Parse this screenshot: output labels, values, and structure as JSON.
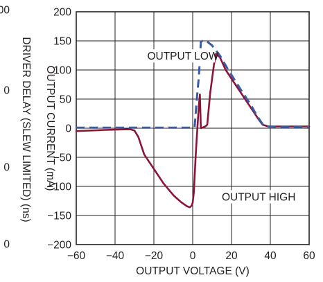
{
  "chart_data": {
    "type": "line",
    "title": "",
    "xlabel": "OUTPUT VOLTAGE (V)",
    "ylabel": "OUTPUT CURRENT (mA)",
    "side_label": "DRIVER DELAY (SLEW LIMITED) (ns)",
    "side_ticks": [
      "00",
      "0",
      "0",
      "0"
    ],
    "xlim": [
      -60,
      60
    ],
    "ylim": [
      -200,
      200
    ],
    "x_ticks": [
      "−60",
      "−40",
      "−20",
      "0",
      "20",
      "40",
      "60"
    ],
    "y_ticks": [
      "200",
      "150",
      "100",
      "50",
      "0",
      "−50",
      "−100",
      "−150",
      "−200"
    ],
    "grid": true,
    "annotations": [
      {
        "text": "OUTPUT LOW",
        "x": -5,
        "y": 120
      },
      {
        "text": "OUTPUT HIGH",
        "x": 34,
        "y": -122
      }
    ],
    "series": [
      {
        "color": "#8a1538",
        "style": "solid",
        "points": [
          [
            -60,
            -5
          ],
          [
            -45,
            -3
          ],
          [
            -35,
            -2
          ],
          [
            -32,
            -2
          ],
          [
            -30,
            -4
          ],
          [
            -28,
            -15
          ],
          [
            -25,
            -45
          ],
          [
            -20,
            -70
          ],
          [
            -15,
            -95
          ],
          [
            -10,
            -115
          ],
          [
            -6,
            -127
          ],
          [
            -3,
            -134
          ],
          [
            -1.5,
            -136
          ],
          [
            -0.5,
            -133
          ],
          [
            0,
            -128
          ],
          [
            0.6,
            -110
          ],
          [
            1.5,
            -50
          ],
          [
            2.5,
            5
          ],
          [
            3.2,
            40
          ],
          [
            3.7,
            58
          ],
          [
            4.2,
            0
          ],
          [
            5,
            1
          ],
          [
            6.5,
            3
          ],
          [
            7.5,
            6
          ],
          [
            9,
            60
          ],
          [
            11,
            110
          ],
          [
            12,
            128
          ],
          [
            14,
            122
          ],
          [
            17,
            100
          ],
          [
            22,
            75
          ],
          [
            27,
            50
          ],
          [
            31,
            30
          ],
          [
            34,
            15
          ],
          [
            36,
            6
          ],
          [
            39,
            3
          ],
          [
            45,
            3
          ],
          [
            60,
            3
          ]
        ]
      },
      {
        "color": "#3b5ba5",
        "style": "dashed",
        "points": [
          [
            -60,
            1
          ],
          [
            -30,
            1
          ],
          [
            0,
            1
          ],
          [
            1,
            2
          ],
          [
            2,
            45
          ],
          [
            3.2,
            90
          ],
          [
            4.2,
            148
          ],
          [
            5,
            150
          ],
          [
            7,
            150
          ],
          [
            10,
            142
          ],
          [
            14,
            125
          ],
          [
            18,
            102
          ],
          [
            25,
            65
          ],
          [
            30,
            40
          ],
          [
            33,
            22
          ],
          [
            36,
            7
          ],
          [
            38,
            3
          ],
          [
            45,
            2
          ],
          [
            60,
            2
          ]
        ]
      }
    ]
  }
}
